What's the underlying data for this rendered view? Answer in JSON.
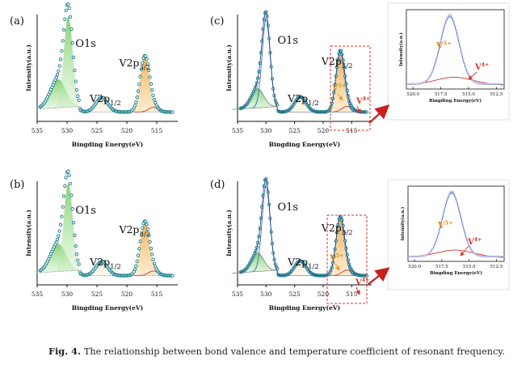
{
  "panels": [
    {
      "label": "(a)",
      "ylabel": "Intensity(a.u.)",
      "xlabel": "Bingding Energy(eV)",
      "ticks": [
        "535",
        "530",
        "525",
        "520",
        "515"
      ],
      "peaks": [
        "O1s",
        "V2p1/2",
        "V2p3/2"
      ],
      "valence": null
    },
    {
      "label": "(b)",
      "ylabel": "Intensity(a.u.)",
      "xlabel": "Bingding Energy(eV)",
      "ticks": [
        "535",
        "530",
        "525",
        "520",
        "515"
      ],
      "peaks": [
        "O1s",
        "V2p1/2",
        "V2p3/2"
      ],
      "valence": null
    },
    {
      "label": "(c)",
      "ylabel": "Intensity(a.u.)",
      "xlabel": "Bingding Energy(eV)",
      "ticks": [
        "535",
        "530",
        "525",
        "520",
        "515"
      ],
      "peaks": [
        "O1s",
        "V2p1/2",
        "V2p3/2"
      ],
      "valence": [
        "V5+",
        "V4+"
      ]
    },
    {
      "label": "(d)",
      "ylabel": "Intensity(a.u.)",
      "xlabel": "Bingding Energy(eV)",
      "ticks": [
        "535",
        "530",
        "525",
        "520",
        "515"
      ],
      "peaks": [
        "O1s",
        "V2p1/2",
        "V2p3/2"
      ],
      "valence": [
        "V5+",
        "V4+"
      ]
    }
  ],
  "insets": [
    {
      "ylabel": "Intensity(a.u.)",
      "xlabel": "Bingding Energy(eV)",
      "ticks": [
        "520.0",
        "517.5",
        "515.0",
        "512.5"
      ],
      "labels": [
        "V5+",
        "V4+"
      ]
    },
    {
      "ylabel": "Intensity(a.u.)",
      "xlabel": "Bingding Energy(eV)",
      "ticks": [
        "520.0",
        "517.5",
        "515.0",
        "512.5"
      ],
      "labels": [
        "V5+",
        "V4+"
      ]
    }
  ],
  "caption": {
    "number": "Fig. 4",
    "text": "The relationship between bond valence and temperature coefficient of resonant frequency."
  },
  "colors": {
    "raw": "#127a88",
    "fit": "#3a6fc8",
    "o1s": "#7fcf6a",
    "v2p": "#f0b050",
    "v4": "#d8352a",
    "box": "#d8352a"
  }
}
